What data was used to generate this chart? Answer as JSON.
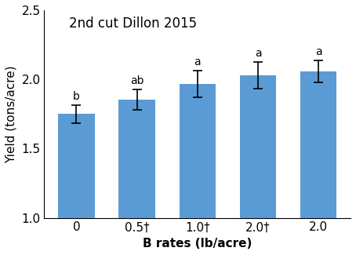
{
  "title": "2nd cut Dillon 2015",
  "xlabel": "B rates (lb/acre)",
  "ylabel": "Yield (tons/acre)",
  "categories": [
    "0",
    "0.5†",
    "1.0†",
    "2.0†",
    "2.0"
  ],
  "values": [
    1.75,
    1.855,
    1.968,
    2.03,
    2.058
  ],
  "errors": [
    0.065,
    0.075,
    0.095,
    0.095,
    0.08
  ],
  "letters": [
    "b",
    "ab",
    "a",
    "a",
    "a"
  ],
  "bar_color": "#5b9bd5",
  "ylim": [
    1.0,
    2.5
  ],
  "yticks": [
    1.0,
    1.5,
    2.0,
    2.5
  ],
  "bar_width": 0.6,
  "title_fontsize": 12,
  "label_fontsize": 11,
  "tick_fontsize": 11,
  "letter_fontsize": 10
}
